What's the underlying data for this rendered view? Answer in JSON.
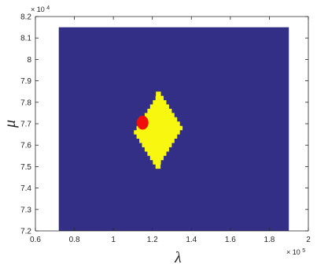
{
  "chart_data": {
    "type": "heatmap",
    "xlabel": "λ",
    "ylabel": "μ",
    "x_exponent_label": "× 10^5",
    "y_exponent_label": "× 10^4",
    "x_multiplier": "× 10",
    "x_exponent": "5",
    "y_multiplier": "× 10",
    "y_exponent": "4",
    "xlim": [
      0.6,
      2.0
    ],
    "ylim": [
      7.2,
      8.2
    ],
    "x_ticks": [
      "0.6",
      "0.8",
      "1",
      "1.2",
      "1.4",
      "1.6",
      "1.8",
      "2"
    ],
    "y_ticks": [
      "7.2",
      "7.3",
      "7.4",
      "7.5",
      "7.6",
      "7.7",
      "7.8",
      "7.9",
      "8",
      "8.1",
      "8.2"
    ],
    "grid": false,
    "colors": {
      "background_region": "#332f87",
      "feasible_region": "#f7f70f",
      "optimum_region": "#f20d0d",
      "axes": "#262626"
    },
    "regions": [
      {
        "role": "background",
        "x_range": [
          0.72,
          1.9
        ],
        "y_range": [
          7.2,
          8.15
        ]
      },
      {
        "role": "yellow-diamond",
        "center": [
          1.23,
          7.67
        ],
        "x_extent": [
          1.1,
          1.35
        ],
        "y_extent": [
          7.49,
          7.85
        ]
      },
      {
        "role": "red-blob",
        "center": [
          1.15,
          7.705
        ],
        "x_extent": [
          1.12,
          1.18
        ],
        "y_extent": [
          7.675,
          7.74
        ]
      }
    ]
  }
}
